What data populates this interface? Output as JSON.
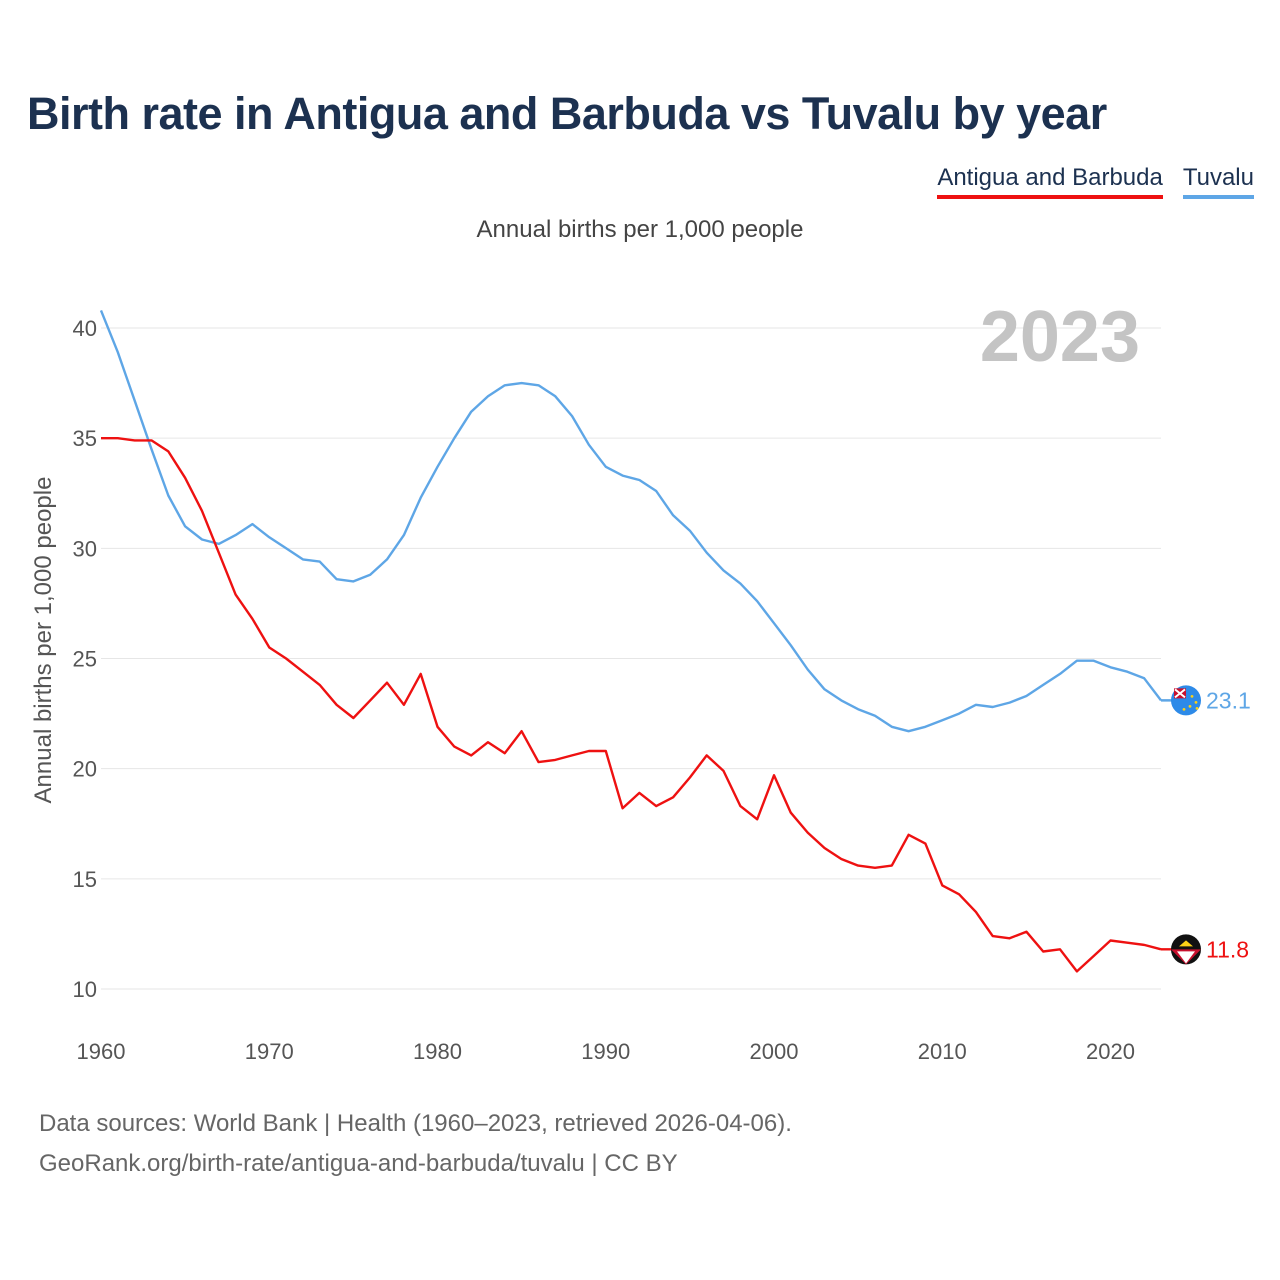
{
  "title": "Birth rate in Antigua and Barbuda vs Tuvalu by year",
  "subtitle": "Annual births per 1,000 people",
  "legend": [
    {
      "label": "Antigua and Barbuda",
      "color": "#ee1111"
    },
    {
      "label": "Tuvalu",
      "color": "#5ea6e6"
    }
  ],
  "footer": {
    "line1": "Data sources: World Bank | Health (1960–2023, retrieved 2026-04-06).",
    "line2": "GeoRank.org/birth-rate/antigua-and-barbuda/tuvalu | CC BY"
  },
  "chart_data": {
    "type": "line",
    "title": "Birth rate in Antigua and Barbuda vs Tuvalu by year",
    "ylabel": "Annual births per 1,000 people",
    "xlabel": "",
    "year_watermark": "2023",
    "xlim": [
      1960,
      2023
    ],
    "ylim": [
      9,
      41.5
    ],
    "xticks": [
      1960,
      1970,
      1980,
      1990,
      2000,
      2010,
      2020
    ],
    "yticks": [
      10,
      15,
      20,
      25,
      30,
      35,
      40
    ],
    "x": [
      1960,
      1961,
      1962,
      1963,
      1964,
      1965,
      1966,
      1967,
      1968,
      1969,
      1970,
      1971,
      1972,
      1973,
      1974,
      1975,
      1976,
      1977,
      1978,
      1979,
      1980,
      1981,
      1982,
      1983,
      1984,
      1985,
      1986,
      1987,
      1988,
      1989,
      1990,
      1991,
      1992,
      1993,
      1994,
      1995,
      1996,
      1997,
      1998,
      1999,
      2000,
      2001,
      2002,
      2003,
      2004,
      2005,
      2006,
      2007,
      2008,
      2009,
      2010,
      2011,
      2012,
      2013,
      2014,
      2015,
      2016,
      2017,
      2018,
      2019,
      2020,
      2021,
      2022,
      2023
    ],
    "series": [
      {
        "name": "Antigua and Barbuda",
        "color": "#ee1111",
        "end_label": "11.8",
        "values": [
          35.0,
          35.0,
          34.9,
          34.9,
          34.4,
          33.2,
          31.7,
          29.8,
          27.9,
          26.8,
          25.5,
          25.0,
          24.4,
          23.8,
          22.9,
          22.3,
          23.1,
          23.9,
          22.9,
          24.3,
          21.9,
          21.0,
          20.6,
          21.2,
          20.7,
          21.7,
          20.3,
          20.4,
          20.6,
          20.8,
          20.8,
          18.2,
          18.9,
          18.3,
          18.7,
          19.6,
          20.6,
          19.9,
          18.3,
          17.7,
          19.7,
          18.0,
          17.1,
          16.4,
          15.9,
          15.6,
          15.5,
          15.6,
          17.0,
          16.6,
          14.7,
          14.3,
          13.5,
          12.4,
          12.3,
          12.6,
          11.7,
          11.8,
          10.8,
          11.5,
          12.2,
          12.1,
          12.0,
          11.8
        ]
      },
      {
        "name": "Tuvalu",
        "color": "#5ea6e6",
        "end_label": "23.1",
        "values": [
          40.8,
          38.9,
          36.7,
          34.5,
          32.4,
          31.0,
          30.4,
          30.2,
          30.6,
          31.1,
          30.5,
          30.0,
          29.5,
          29.4,
          28.6,
          28.5,
          28.8,
          29.5,
          30.6,
          32.3,
          33.7,
          35.0,
          36.2,
          36.9,
          37.4,
          37.5,
          37.4,
          36.9,
          36.0,
          34.7,
          33.7,
          33.3,
          33.1,
          32.6,
          31.5,
          30.8,
          29.8,
          29.0,
          28.4,
          27.6,
          26.6,
          25.6,
          24.5,
          23.6,
          23.1,
          22.7,
          22.4,
          21.9,
          21.7,
          21.9,
          22.2,
          22.5,
          22.9,
          22.8,
          23.0,
          23.3,
          23.8,
          24.3,
          24.9,
          24.9,
          24.6,
          24.4,
          24.1,
          23.1
        ]
      }
    ]
  }
}
